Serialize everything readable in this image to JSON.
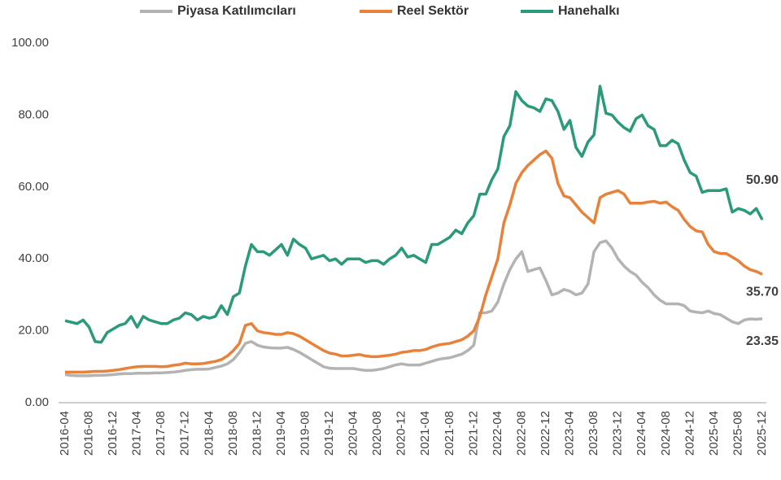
{
  "chart_data": {
    "type": "line",
    "categories": [
      "2016-04",
      null,
      null,
      null,
      "2016-08",
      null,
      null,
      null,
      "2016-12",
      null,
      null,
      null,
      "2017-04",
      null,
      null,
      null,
      "2017-08",
      null,
      null,
      null,
      "2017-12",
      null,
      null,
      null,
      "2018-04",
      null,
      null,
      null,
      "2018-08",
      null,
      null,
      null,
      "2018-12",
      null,
      null,
      null,
      "2019-04",
      null,
      null,
      null,
      "2019-08",
      null,
      null,
      null,
      "2019-12",
      null,
      null,
      null,
      "2020-04",
      null,
      null,
      null,
      "2020-08",
      null,
      null,
      null,
      "2020-12",
      null,
      null,
      null,
      "2021-04",
      null,
      null,
      null,
      "2021-08",
      null,
      null,
      null,
      "2021-12",
      null,
      null,
      null,
      "2022-04",
      null,
      null,
      null,
      "2022-08",
      null,
      null,
      null,
      "2022-12",
      null,
      null,
      null,
      "2023-04",
      null,
      null,
      null,
      "2023-08",
      null,
      null,
      null,
      "2023-12",
      null,
      null,
      null,
      "2024-04",
      null,
      null,
      null,
      "2024-08",
      null,
      null,
      null,
      "2024-12",
      null,
      null,
      null,
      "2025-04",
      null,
      null,
      null,
      "2025-08",
      null,
      null,
      null,
      "2025-12"
    ],
    "series": [
      {
        "name": "Piyasa Katılımcıları",
        "color": "#b3b3b3",
        "values": [
          7.8,
          7.6,
          7.5,
          7.5,
          7.5,
          7.6,
          7.6,
          7.7,
          7.8,
          8,
          8.1,
          8.1,
          8.2,
          8.2,
          8.2,
          8.3,
          8.3,
          8.4,
          8.5,
          8.7,
          9,
          9.2,
          9.3,
          9.3,
          9.4,
          9.8,
          10.2,
          10.8,
          12,
          14,
          16.5,
          17,
          16,
          15.5,
          15.3,
          15.2,
          15.2,
          15.4,
          14.8,
          14,
          13,
          12,
          11,
          10,
          9.6,
          9.5,
          9.5,
          9.5,
          9.5,
          9.2,
          9,
          9,
          9.2,
          9.5,
          10,
          10.5,
          10.8,
          10.5,
          10.5,
          10.5,
          11,
          11.5,
          12,
          12.3,
          12.5,
          13,
          13.5,
          14.5,
          16,
          25,
          25,
          25.5,
          28,
          33,
          37,
          40,
          42,
          36.5,
          37,
          37.5,
          34,
          30,
          30.5,
          31.5,
          31,
          30,
          30.5,
          33,
          42,
          44.5,
          45,
          43,
          40,
          38,
          36.5,
          35.5,
          33.5,
          32,
          30,
          28.5,
          27.5,
          27.5,
          27.5,
          27,
          25.5,
          25.2,
          25,
          25.5,
          24.8,
          24.5,
          23.5,
          22.5,
          22,
          23,
          23.3,
          23.2,
          23.35
        ],
        "value_labels": [
          null,
          null,
          null,
          null,
          null,
          null,
          null,
          null,
          null,
          null,
          null,
          null,
          null,
          null,
          null,
          null,
          null,
          null,
          null,
          null,
          null,
          null,
          null,
          null,
          null,
          null,
          null,
          null,
          null,
          null,
          null,
          null,
          null,
          null,
          null,
          null,
          null,
          null,
          null,
          null,
          null,
          null,
          null,
          null,
          null,
          null,
          null,
          null,
          null,
          null,
          null,
          null,
          null,
          null,
          null,
          null,
          null,
          null,
          null,
          null,
          null,
          null,
          null,
          null,
          null,
          null,
          null,
          null,
          null,
          null,
          null,
          null,
          null,
          null,
          null,
          null,
          null,
          null,
          null,
          null,
          null,
          null,
          null,
          null,
          null,
          null,
          null,
          null,
          null,
          null,
          null,
          null,
          null,
          null,
          null,
          null,
          null,
          null,
          null,
          null,
          null,
          null,
          null,
          null,
          null,
          null,
          null,
          null,
          null,
          null,
          null,
          null,
          null,
          null,
          null,
          null,
          "23.35"
        ]
      },
      {
        "name": "Reel Sektör",
        "color": "#e8823a",
        "values": [
          8.5,
          8.5,
          8.5,
          8.5,
          8.6,
          8.7,
          8.7,
          8.8,
          9,
          9.2,
          9.5,
          9.8,
          10,
          10.1,
          10.1,
          10.1,
          10,
          10.1,
          10.4,
          10.6,
          11,
          10.8,
          10.8,
          10.9,
          11.2,
          11.5,
          12,
          13,
          14.5,
          16.5,
          21.5,
          22,
          20,
          19.5,
          19.3,
          19,
          19,
          19.5,
          19.2,
          18.5,
          17.5,
          16.5,
          15.5,
          14.5,
          13.8,
          13.5,
          13,
          13,
          13.2,
          13.4,
          13,
          12.8,
          12.8,
          13,
          13.2,
          13.5,
          14,
          14.2,
          14.5,
          14.5,
          14.8,
          15.5,
          16,
          16.3,
          16.5,
          17,
          17.5,
          18.5,
          20,
          24,
          30,
          35,
          40,
          50,
          55,
          61,
          64,
          66,
          67.5,
          69,
          70,
          68,
          61,
          57.5,
          57,
          55,
          53,
          51.5,
          50,
          57,
          58,
          58.5,
          59,
          58,
          55.5,
          55.5,
          55.5,
          55.8,
          56,
          55.5,
          55.8,
          54.5,
          53.5,
          51,
          49,
          47.8,
          47.5,
          44,
          42,
          41.5,
          41.5,
          40.5,
          39.5,
          38,
          37,
          36.5,
          35.7
        ],
        "value_labels": [
          null,
          null,
          null,
          null,
          null,
          null,
          null,
          null,
          null,
          null,
          null,
          null,
          null,
          null,
          null,
          null,
          null,
          null,
          null,
          null,
          null,
          null,
          null,
          null,
          null,
          null,
          null,
          null,
          null,
          null,
          null,
          null,
          null,
          null,
          null,
          null,
          null,
          null,
          null,
          null,
          null,
          null,
          null,
          null,
          null,
          null,
          null,
          null,
          null,
          null,
          null,
          null,
          null,
          null,
          null,
          null,
          null,
          null,
          null,
          null,
          null,
          null,
          null,
          null,
          null,
          null,
          null,
          null,
          null,
          null,
          null,
          null,
          null,
          null,
          null,
          null,
          null,
          null,
          null,
          null,
          null,
          null,
          null,
          null,
          null,
          null,
          null,
          null,
          null,
          null,
          null,
          null,
          null,
          null,
          null,
          null,
          null,
          null,
          null,
          null,
          null,
          null,
          null,
          null,
          null,
          null,
          null,
          null,
          null,
          null,
          null,
          null,
          null,
          null,
          null,
          null,
          "35.70"
        ]
      },
      {
        "name": "Hanehalkı",
        "color": "#2a9a7a",
        "values": [
          22.8,
          22.4,
          22,
          23,
          21,
          17,
          16.8,
          19.5,
          20.5,
          21.5,
          22,
          24,
          21,
          24,
          23,
          22.5,
          22,
          22,
          23,
          23.5,
          25,
          24.5,
          23,
          24,
          23.5,
          24,
          27,
          24.5,
          29.5,
          30.5,
          38,
          44,
          42,
          42,
          41,
          42.5,
          44,
          41,
          45.5,
          44,
          43,
          40,
          40.5,
          41,
          39.5,
          40,
          38.5,
          40,
          40,
          40,
          39,
          39.5,
          39.5,
          38.5,
          40,
          41,
          43,
          40.5,
          41,
          40,
          39,
          44,
          44,
          45,
          46,
          48,
          47,
          50,
          52,
          58,
          58,
          62,
          65,
          74,
          77,
          86.5,
          84,
          82.5,
          82,
          81,
          84.5,
          84,
          81,
          76,
          78.5,
          71,
          68.5,
          72.5,
          74.5,
          88,
          80.5,
          80,
          78,
          76.5,
          75.5,
          79,
          80,
          77,
          76,
          71.5,
          71.5,
          73,
          72,
          67.5,
          64,
          63,
          58.5,
          59,
          59,
          59,
          59.5,
          53,
          54,
          53.5,
          52.5,
          54,
          50.9
        ],
        "value_labels": [
          null,
          null,
          null,
          null,
          null,
          null,
          null,
          null,
          null,
          null,
          null,
          null,
          null,
          null,
          null,
          null,
          null,
          null,
          null,
          null,
          null,
          null,
          null,
          null,
          null,
          null,
          null,
          null,
          null,
          null,
          null,
          null,
          null,
          null,
          null,
          null,
          null,
          null,
          null,
          null,
          null,
          null,
          null,
          null,
          null,
          null,
          null,
          null,
          null,
          null,
          null,
          null,
          null,
          null,
          null,
          null,
          null,
          null,
          null,
          null,
          null,
          null,
          null,
          null,
          null,
          null,
          null,
          null,
          null,
          null,
          null,
          null,
          null,
          null,
          null,
          null,
          null,
          null,
          null,
          null,
          null,
          null,
          null,
          null,
          null,
          null,
          null,
          null,
          null,
          null,
          null,
          null,
          null,
          null,
          null,
          null,
          null,
          null,
          null,
          null,
          null,
          null,
          null,
          null,
          null,
          null,
          null,
          null,
          null,
          null,
          null,
          null,
          null,
          null,
          null,
          null,
          "50.90"
        ]
      }
    ],
    "ylim": [
      0,
      100
    ],
    "yticks": [
      {
        "value": 0,
        "label": "0.00"
      },
      {
        "value": 20,
        "label": "20.00"
      },
      {
        "value": 40,
        "label": "40.00"
      },
      {
        "value": 60,
        "label": "60.00"
      },
      {
        "value": 80,
        "label": "80.00"
      },
      {
        "value": 100,
        "label": "100.00"
      }
    ],
    "grid": false,
    "legend": "top"
  }
}
